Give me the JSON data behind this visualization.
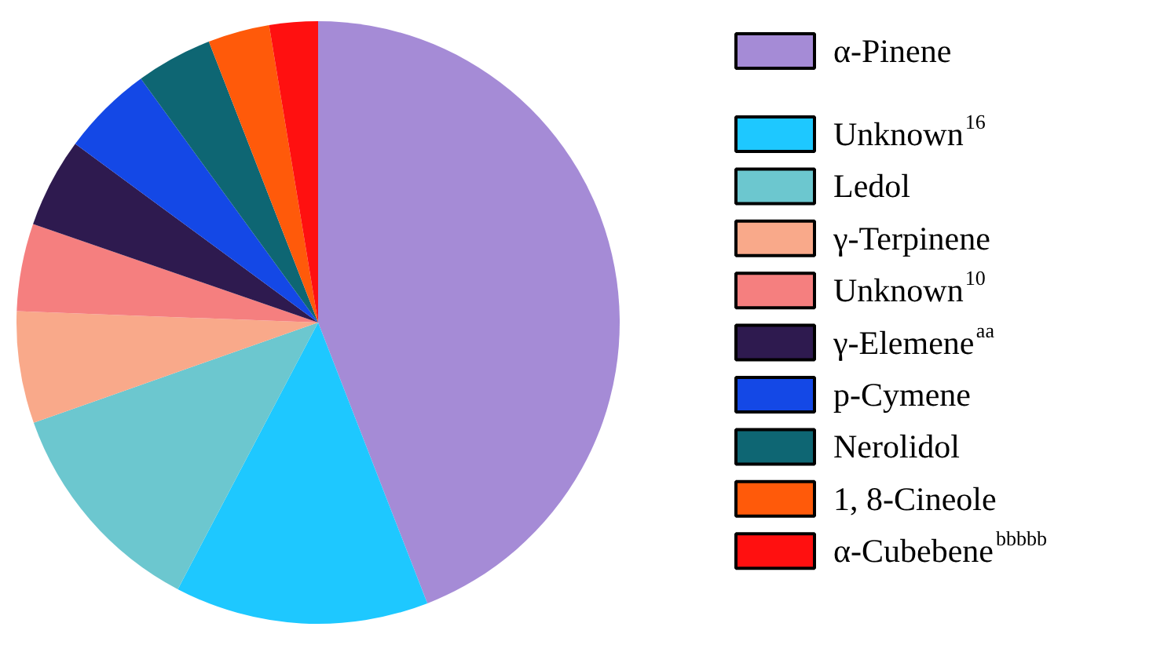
{
  "chart_data": {
    "type": "pie",
    "legend": "right",
    "categories": [
      "α-Pinene",
      "Unknown$^{16}$",
      "Ledol",
      "γ-Terpinene",
      "Unknown$^{10}$",
      "γ-Elemene$^{aa}$",
      "p-Cymene",
      "Nerolidol",
      "1, 8-Cineole",
      "α-Cubebene$^{bbbbb}$"
    ],
    "values": [
      44.1,
      13.6,
      11.9,
      6.0,
      4.7,
      4.8,
      4.9,
      4.1,
      3.3,
      2.6
    ],
    "colors": [
      "#a58bd6",
      "#1ec8ff",
      "#6cc7cf",
      "#f9a98a",
      "#f57f7f",
      "#2e1a4f",
      "#1448e6",
      "#0e6673",
      "#ff5a0a",
      "#ff1010"
    ]
  }
}
